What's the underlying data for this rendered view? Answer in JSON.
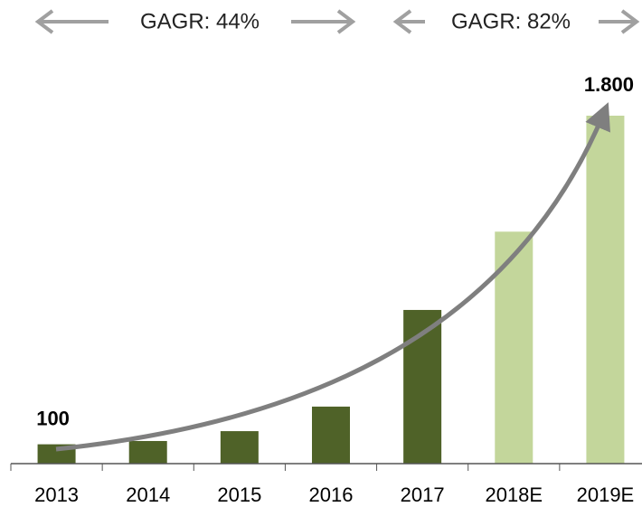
{
  "chart_data": {
    "type": "bar",
    "annotations": [
      "GAGR: 44%",
      "GAGR: 82%"
    ],
    "categories": [
      "2013",
      "2014",
      "2015",
      "2016",
      "2017",
      "2018E",
      "2019E"
    ],
    "values": [
      100,
      117,
      168,
      295,
      795,
      1200,
      1800
    ],
    "value_labels": [
      "100",
      null,
      null,
      null,
      null,
      null,
      "1.800"
    ],
    "colors": [
      "#4f6228",
      "#4f6228",
      "#4f6228",
      "#4f6228",
      "#4f6228",
      "#c3d69b",
      "#c3d69b"
    ]
  }
}
